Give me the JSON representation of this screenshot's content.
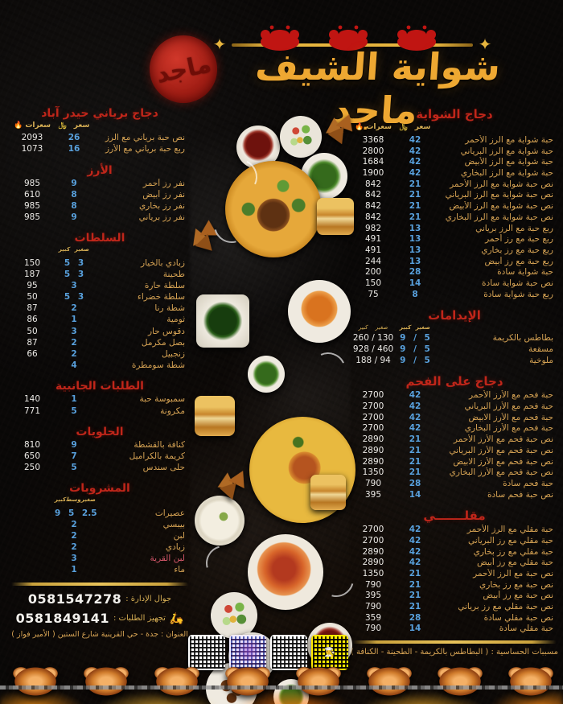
{
  "brand": {
    "title": "شواية الشيف ماجد",
    "stamp": "ماجد"
  },
  "labels": {
    "price": "سعر",
    "calories": "سعرات",
    "riyal_symbol": "﷼",
    "flame_icon": "🔥"
  },
  "right_column": {
    "sections": [
      {
        "title": "دجاج الشواية",
        "main_headers": true,
        "items": [
          {
            "name": "حبة شواية مع الرز الأحمر",
            "price": "42",
            "cal": "3368"
          },
          {
            "name": "حبة شواية مع الرز البرياني",
            "price": "42",
            "cal": "2800"
          },
          {
            "name": "حبة شواية مع الرز الأبيض",
            "price": "42",
            "cal": "1684"
          },
          {
            "name": "حبة شواية مع الرز البخاري",
            "price": "42",
            "cal": "1900"
          },
          {
            "name": "نص حبة شواية مع الرز الأحمر",
            "price": "21",
            "cal": "842"
          },
          {
            "name": "نص حبة شواية مع الرز البرياني",
            "price": "21",
            "cal": "842"
          },
          {
            "name": "نص حبة شواية مع الرز الأبيض",
            "price": "21",
            "cal": "842"
          },
          {
            "name": "نص حبة شواية مع الرز البخاري",
            "price": "21",
            "cal": "842"
          },
          {
            "name": "ربع حبة مع الرز برياني",
            "price": "13",
            "cal": "982"
          },
          {
            "name": "ربع حبة مع رز أحمر",
            "price": "13",
            "cal": "491"
          },
          {
            "name": "ربع حبة مع رز بخاري",
            "price": "13",
            "cal": "491"
          },
          {
            "name": "ربع حبة مع رز أبيض",
            "price": "13",
            "cal": "244"
          },
          {
            "name": "حبة شواية سادة",
            "price": "28",
            "cal": "200"
          },
          {
            "name": "نص حبة شواية سادة",
            "price": "14",
            "cal": "150"
          },
          {
            "name": "ربع حبة شواية سادة",
            "price": "8",
            "cal": "75"
          }
        ]
      },
      {
        "title": "الإيدامات",
        "main_headers": false,
        "sub_cal_labels": [
          "كبير",
          "صغير"
        ],
        "sub_price_labels": [
          "كبير",
          "صغير"
        ],
        "items": [
          {
            "name": "بطاطس بالكريمة",
            "price": "9 / 5",
            "cal": "260 / 130"
          },
          {
            "name": "مسقعة",
            "price": "9 / 5",
            "cal": "928 / 460"
          },
          {
            "name": "ملوخية",
            "price": "9 / 5",
            "cal": "188 / 94"
          }
        ]
      },
      {
        "title": "دجاج على الفحم",
        "main_headers": false,
        "items": [
          {
            "name": "حبة فحم مع الأرز الأحمر",
            "price": "42",
            "cal": "2700"
          },
          {
            "name": "حبة فحم مع الأرز البرياني",
            "price": "42",
            "cal": "2700"
          },
          {
            "name": "حبة فحم مع الأرز الابيض",
            "price": "42",
            "cal": "2700"
          },
          {
            "name": "حبة فحم مع الأرز البخاري",
            "price": "42",
            "cal": "2700"
          },
          {
            "name": "نص حبة فحم مع الأرز الأحمر",
            "price": "21",
            "cal": "2890"
          },
          {
            "name": "نص حبة فحم مع الأرز البرياني",
            "price": "21",
            "cal": "2890"
          },
          {
            "name": "نص حبة فحم مع الأرز الابيض",
            "price": "21",
            "cal": "2890"
          },
          {
            "name": "نص حبة فحم مع الأرز البخاري",
            "price": "21",
            "cal": "1350"
          },
          {
            "name": "حبة فحم سادة",
            "price": "28",
            "cal": "790"
          },
          {
            "name": "نص حبة فحم سادة",
            "price": "14",
            "cal": "395"
          }
        ]
      },
      {
        "title": "مقلـــــــي",
        "main_headers": false,
        "items": [
          {
            "name": "حبة مقلي مع الرز الأحمر",
            "price": "42",
            "cal": "2700"
          },
          {
            "name": "حبة مقلي مع رز البرياني",
            "price": "42",
            "cal": "2700"
          },
          {
            "name": "حبة مقلي مع رز بخاري",
            "price": "42",
            "cal": "2890"
          },
          {
            "name": "حبة مقلي مع رز أبيض",
            "price": "42",
            "cal": "2890"
          },
          {
            "name": "نص حبة مع الرز الأحمر",
            "price": "21",
            "cal": "1350"
          },
          {
            "name": "نص حبة مع رز بخاري",
            "price": "21",
            "cal": "790"
          },
          {
            "name": "نص حبة مع رز أبيض",
            "price": "21",
            "cal": "395"
          },
          {
            "name": "نص حبة مقلي مع رز برياني",
            "price": "21",
            "cal": "790"
          },
          {
            "name": "نص حبة مقلي سادة",
            "price": "28",
            "cal": "359"
          },
          {
            "name": "حبة مقلي سادة",
            "price": "14",
            "cal": "790"
          }
        ]
      }
    ]
  },
  "left_column": {
    "sections": [
      {
        "title": "دجاج برياني حيدر آباد",
        "main_headers": true,
        "items": [
          {
            "name": "نص حبة برياني مع الرز",
            "price": "26",
            "cal": "2093"
          },
          {
            "name": "ربع حبة برياني مع الأرز",
            "price": "16",
            "cal": "1073"
          }
        ]
      },
      {
        "title": "الأرز",
        "main_headers": false,
        "items": [
          {
            "name": "نفر رز أحمر",
            "price": "9",
            "cal": "985"
          },
          {
            "name": "نفر رز أبيض",
            "price": "8",
            "cal": "610"
          },
          {
            "name": "نفر رز بخاري",
            "price": "8",
            "cal": "985"
          },
          {
            "name": "نفر رز برياني",
            "price": "9",
            "cal": "985"
          }
        ]
      },
      {
        "title": "السلطات",
        "main_headers": false,
        "sub_price_labels": [
          "كبير",
          "صغير"
        ],
        "items": [
          {
            "name": "زبادي بالخيار",
            "price": "5  3",
            "cal": "150"
          },
          {
            "name": "طحينة",
            "price": "5  3",
            "cal": "187"
          },
          {
            "name": "سلطة حارة",
            "price": "3",
            "cal": "95"
          },
          {
            "name": "سلطة خضراء",
            "price": "5  3",
            "cal": "50"
          },
          {
            "name": "شطة رنا",
            "price": "2",
            "cal": "87"
          },
          {
            "name": "ثومية",
            "price": "1",
            "cal": "86"
          },
          {
            "name": "دقوس حار",
            "price": "3",
            "cal": "50"
          },
          {
            "name": "بصل مكرمل",
            "price": "2",
            "cal": "87"
          },
          {
            "name": "زنجبيل",
            "price": "2",
            "cal": "66"
          },
          {
            "name": "شطة سومطرة",
            "price": "4",
            "cal": ""
          }
        ]
      },
      {
        "title": "الطلبات الجانبية",
        "main_headers": false,
        "items": [
          {
            "name": "سمبوسة حبة",
            "price": "1",
            "cal": "140"
          },
          {
            "name": "مكرونة",
            "price": "5",
            "cal": "771"
          }
        ]
      },
      {
        "title": "الحلويات",
        "main_headers": false,
        "items": [
          {
            "name": "كنافة بالقشطة",
            "price": "9",
            "cal": "810"
          },
          {
            "name": "كريمة بالكراميل",
            "price": "7",
            "cal": "650"
          },
          {
            "name": "حلى سندس",
            "price": "5",
            "cal": "250"
          }
        ]
      },
      {
        "title": "المشروبات",
        "main_headers": false,
        "sub_price_labels": [
          "كبير",
          "وسط",
          "صغير"
        ],
        "items": [
          {
            "name": "عصيرات",
            "price": "9  5  2.5",
            "cal": ""
          },
          {
            "name": "بيبسي",
            "price": "2",
            "cal": ""
          },
          {
            "name": "لبن",
            "price": "2",
            "cal": ""
          },
          {
            "name": "زبادي",
            "price": "2",
            "cal": ""
          },
          {
            "name": "لبن القرية",
            "price": "3",
            "cal": "",
            "highlight": true
          },
          {
            "name": "ماء",
            "price": "1",
            "cal": ""
          }
        ]
      }
    ]
  },
  "allergen_note": "مسببات الحساسية : ( البطاطس بالكريمة - الطحينة - الكنافة )",
  "contact": {
    "management_label": "جوال الإدارة :",
    "management_phone": "0581547278",
    "orders_label": "تجهيز الطلبات :",
    "orders_phone": "0581849141",
    "address": "العنوان : جدة - حي القرينية شارع الستين ( الأمير فواز )"
  }
}
